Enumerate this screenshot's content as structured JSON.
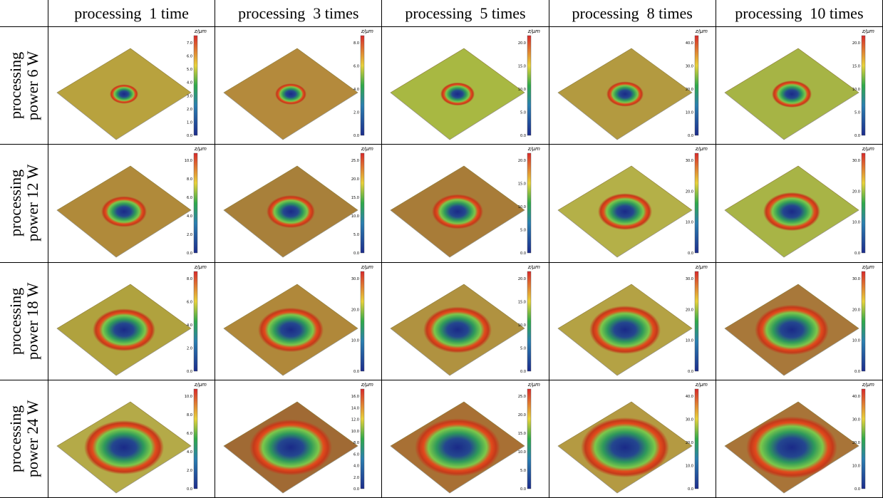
{
  "columns": [
    "processing  1 time",
    "processing  3 times",
    "processing  5 times",
    "processing  8 times",
    "processing  10 times"
  ],
  "colorbar_unit": "z/μm",
  "rows": [
    {
      "label": "processing power 6 W",
      "cells": [
        {
          "ticks": [
            "0.0",
            "1.0",
            "2.0",
            "3.0",
            "4.0",
            "5.0",
            "6.0",
            "7.0"
          ]
        },
        {
          "ticks": [
            "0.0",
            "2.0",
            "4.0",
            "6.0",
            "8.0"
          ]
        },
        {
          "ticks": [
            "0.0",
            "5.0",
            "10.0",
            "15.0",
            "20.0"
          ]
        },
        {
          "ticks": [
            "0.0",
            "10.0",
            "20.0",
            "30.0",
            "40.0"
          ]
        },
        {
          "ticks": [
            "0.0",
            "5.0",
            "10.0",
            "15.0",
            "20.0"
          ]
        }
      ]
    },
    {
      "label": "processing power 12 W",
      "cells": [
        {
          "ticks": [
            "0.0",
            "2.0",
            "4.0",
            "6.0",
            "8.0",
            "10.0"
          ]
        },
        {
          "ticks": [
            "0.0",
            "5.0",
            "10.0",
            "15.0",
            "20.0",
            "25.0"
          ]
        },
        {
          "ticks": [
            "0.0",
            "5.0",
            "10.0",
            "15.0",
            "20.0"
          ]
        },
        {
          "ticks": [
            "0.0",
            "10.0",
            "20.0",
            "30.0"
          ]
        },
        {
          "ticks": [
            "0.0",
            "10.0",
            "20.0",
            "30.0"
          ]
        }
      ]
    },
    {
      "label": "processing power 18 W",
      "cells": [
        {
          "ticks": [
            "0.0",
            "2.0",
            "4.0",
            "6.0",
            "8.0"
          ]
        },
        {
          "ticks": [
            "0.0",
            "10.0",
            "20.0",
            "30.0"
          ]
        },
        {
          "ticks": [
            "0.0",
            "5.0",
            "10.0",
            "15.0",
            "20.0"
          ]
        },
        {
          "ticks": [
            "0.0",
            "10.0",
            "20.0",
            "30.0"
          ]
        },
        {
          "ticks": [
            "0.0",
            "10.0",
            "20.0",
            "30.0"
          ]
        }
      ]
    },
    {
      "label": "processing power 24 W",
      "cells": [
        {
          "ticks": [
            "0.0",
            "2.0",
            "4.0",
            "6.0",
            "8.0",
            "10.0"
          ]
        },
        {
          "ticks": [
            "0.0",
            "2.0",
            "4.0",
            "6.0",
            "8.0",
            "10.0",
            "12.0",
            "14.0",
            "16.0"
          ]
        },
        {
          "ticks": [
            "0.0",
            "5.0",
            "10.0",
            "15.0",
            "20.0",
            "25.0"
          ]
        },
        {
          "ticks": [
            "0.0",
            "10.0",
            "20.0",
            "30.0",
            "40.0"
          ]
        },
        {
          "ticks": [
            "0.0",
            "10.0",
            "20.0",
            "30.0",
            "40.0"
          ]
        }
      ]
    }
  ]
}
